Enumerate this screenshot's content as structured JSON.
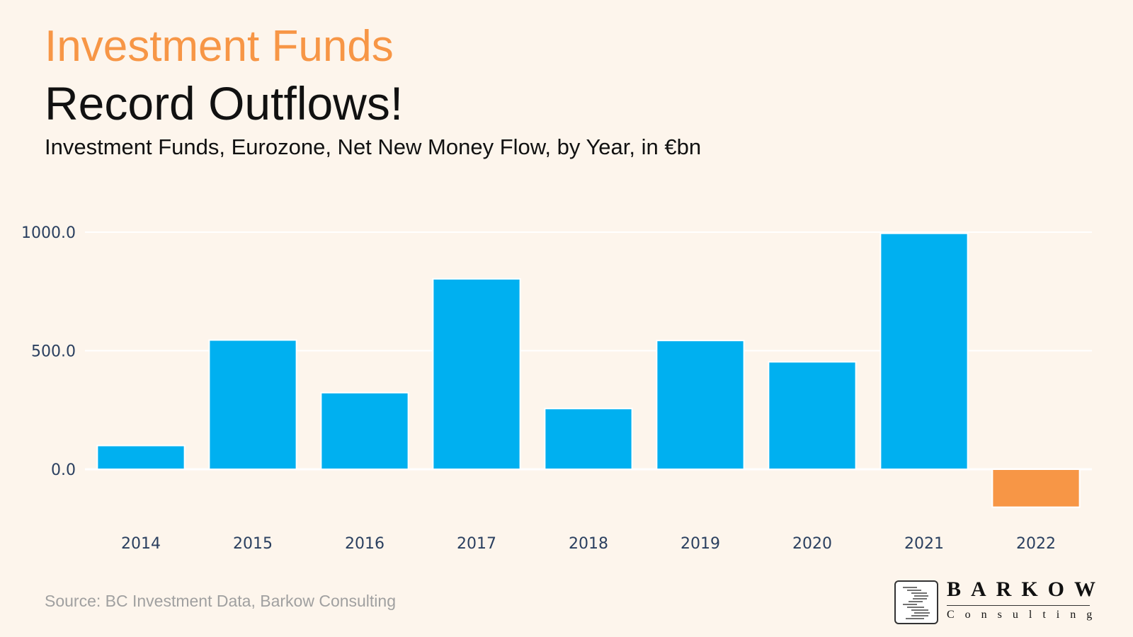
{
  "header": {
    "kicker": "Investment Funds",
    "title": "Record Outflows!",
    "subtitle": "Investment Funds, Eurozone, Net New Money Flow, by Year, in €bn"
  },
  "footer": {
    "source": "Source: BC Investment Data, Barkow Consulting",
    "logo_word": "BARKOW",
    "logo_sub": "Consulting"
  },
  "chart_data": {
    "type": "bar",
    "title": "",
    "xlabel": "",
    "ylabel": "",
    "categories": [
      "2014",
      "2015",
      "2016",
      "2017",
      "2018",
      "2019",
      "2020",
      "2021",
      "2022"
    ],
    "values": [
      100,
      545,
      323,
      803,
      256,
      543,
      453,
      995,
      -160
    ],
    "ylim": [
      -225,
      1030
    ],
    "yticks": [
      0,
      500,
      1000
    ],
    "ytick_labels": [
      "0.0",
      "500.0",
      "1000.0"
    ],
    "grid": true,
    "legend": "none",
    "colors": {
      "positive": "#00b0f0",
      "negative": "#f79646",
      "grid": "#ffffff",
      "tick_text": "#2a3f5f"
    }
  }
}
